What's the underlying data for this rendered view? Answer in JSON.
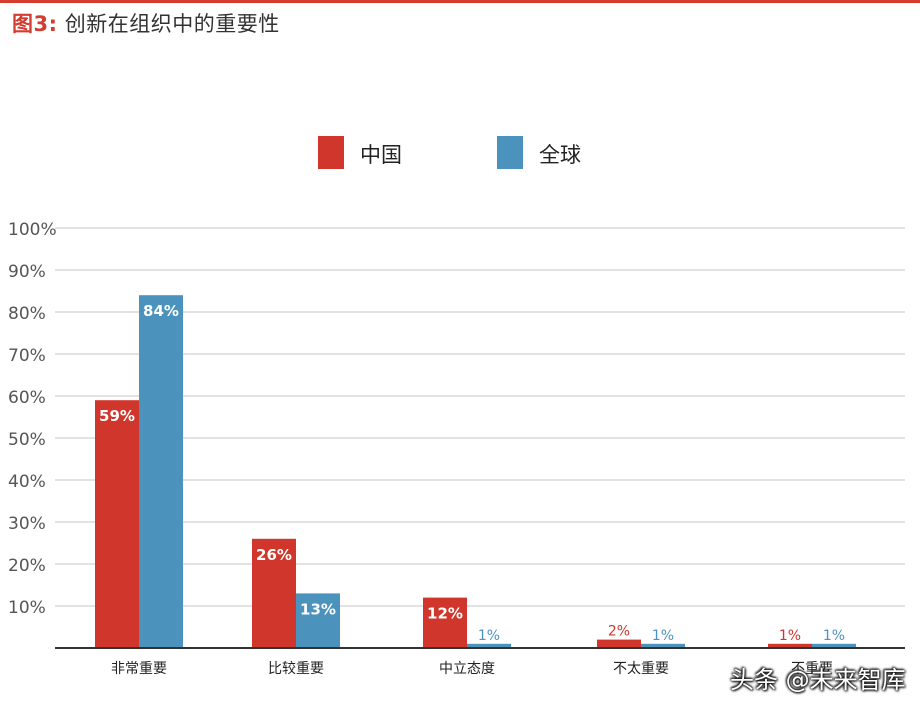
{
  "figure": {
    "label": "图3:",
    "title": "创新在组织中的重要性"
  },
  "colors": {
    "china": "#d0362c",
    "global": "#4b93bd",
    "accent": "#d63b30",
    "grid": "#d9d9d9",
    "axis": "#333333"
  },
  "watermark": "头条 @未来智库",
  "chart_data": {
    "type": "bar",
    "categories": [
      "非常重要",
      "比较重要",
      "中立态度",
      "不太重要",
      "不重要"
    ],
    "series": [
      {
        "name": "中国",
        "values": [
          59,
          26,
          12,
          2,
          1
        ],
        "labels": [
          "59%",
          "26%",
          "12%",
          "2%",
          "1%"
        ]
      },
      {
        "name": "全球",
        "values": [
          84,
          13,
          1,
          1,
          1
        ],
        "labels": [
          "84%",
          "13%",
          "1%",
          "1%",
          "1%"
        ]
      }
    ],
    "ylim": [
      0,
      100
    ],
    "yticks": [
      "10%",
      "20%",
      "30%",
      "40%",
      "50%",
      "60%",
      "70%",
      "80%",
      "90%",
      "100%"
    ],
    "legend": "top-center",
    "grid": true
  }
}
